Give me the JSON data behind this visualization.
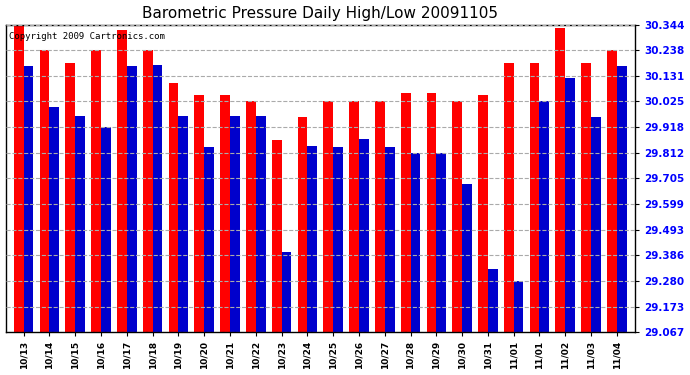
{
  "title": "Barometric Pressure Daily High/Low 20091105",
  "copyright": "Copyright 2009 Cartronics.com",
  "dates": [
    "10/13",
    "10/14",
    "10/15",
    "10/16",
    "10/17",
    "10/18",
    "10/19",
    "10/20",
    "10/21",
    "10/22",
    "10/23",
    "10/24",
    "10/25",
    "10/26",
    "10/27",
    "10/28",
    "10/29",
    "10/30",
    "10/31",
    "11/01",
    "11/01",
    "11/02",
    "11/03",
    "11/04"
  ],
  "highs": [
    30.344,
    30.238,
    30.185,
    30.238,
    30.32,
    30.238,
    30.1,
    30.052,
    30.052,
    30.025,
    29.865,
    29.96,
    30.025,
    30.025,
    30.025,
    30.06,
    30.06,
    30.025,
    30.052,
    30.185,
    30.185,
    30.33,
    30.185,
    30.238
  ],
  "lows": [
    30.17,
    30.0,
    29.965,
    29.918,
    30.17,
    30.175,
    29.965,
    29.835,
    29.965,
    29.965,
    29.4,
    29.84,
    29.835,
    29.87,
    29.835,
    29.812,
    29.812,
    29.68,
    29.33,
    29.28,
    30.025,
    30.12,
    29.96,
    30.17
  ],
  "high_color": "#FF0000",
  "low_color": "#0000CC",
  "bg_color": "#FFFFFF",
  "grid_color": "#AAAAAA",
  "ymin": 29.067,
  "ymax": 30.344,
  "yticks": [
    29.067,
    29.173,
    29.28,
    29.386,
    29.493,
    29.599,
    29.705,
    29.812,
    29.918,
    30.025,
    30.131,
    30.238,
    30.344
  ]
}
